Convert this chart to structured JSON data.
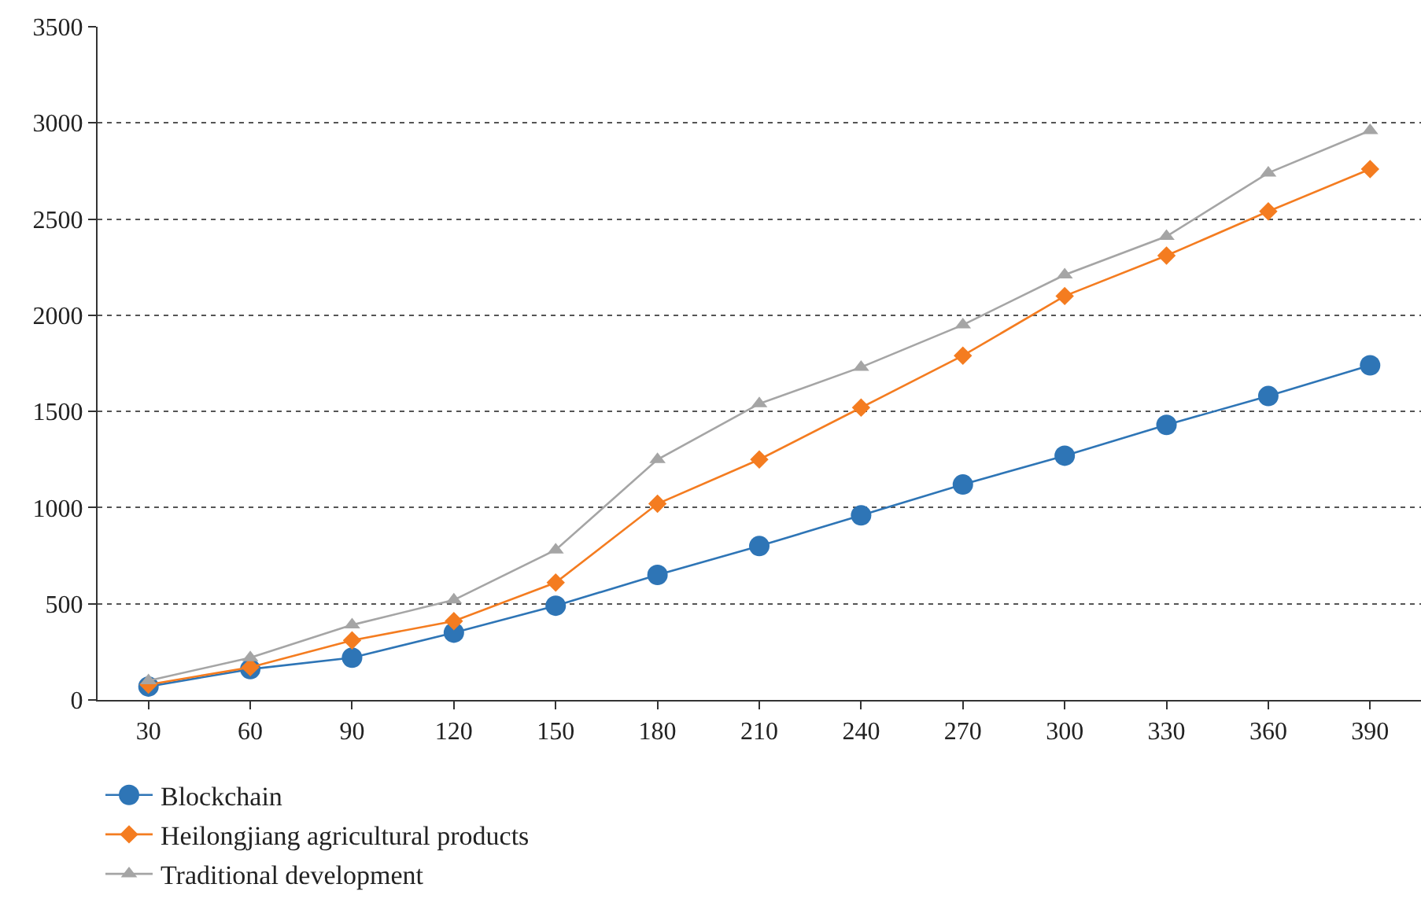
{
  "chart_data": {
    "type": "line",
    "categories": [
      "30",
      "60",
      "90",
      "120",
      "150",
      "180",
      "210",
      "240",
      "270",
      "300",
      "330",
      "360",
      "390"
    ],
    "series": [
      {
        "name": "Blockchain",
        "color": "#2e75b6",
        "marker": "circle",
        "values": [
          70,
          160,
          220,
          350,
          490,
          650,
          800,
          960,
          1120,
          1270,
          1430,
          1580,
          1740
        ]
      },
      {
        "name": "Heilongjiang agricultural products",
        "color": "#f47c20",
        "marker": "diamond",
        "values": [
          80,
          170,
          310,
          410,
          610,
          1020,
          1250,
          1520,
          1790,
          2100,
          2310,
          2540,
          2760
        ]
      },
      {
        "name": "Traditional development",
        "color": "#a5a5a5",
        "marker": "triangle",
        "values": [
          100,
          220,
          390,
          520,
          780,
          1250,
          1540,
          1730,
          1950,
          2210,
          2410,
          2740,
          2960
        ]
      }
    ],
    "ylim": [
      0,
      3500
    ],
    "yticks": [
      0,
      500,
      1000,
      1500,
      2000,
      2500,
      3000,
      3500
    ],
    "grid": "y",
    "legend": "bottom left",
    "line_style": "solid"
  }
}
